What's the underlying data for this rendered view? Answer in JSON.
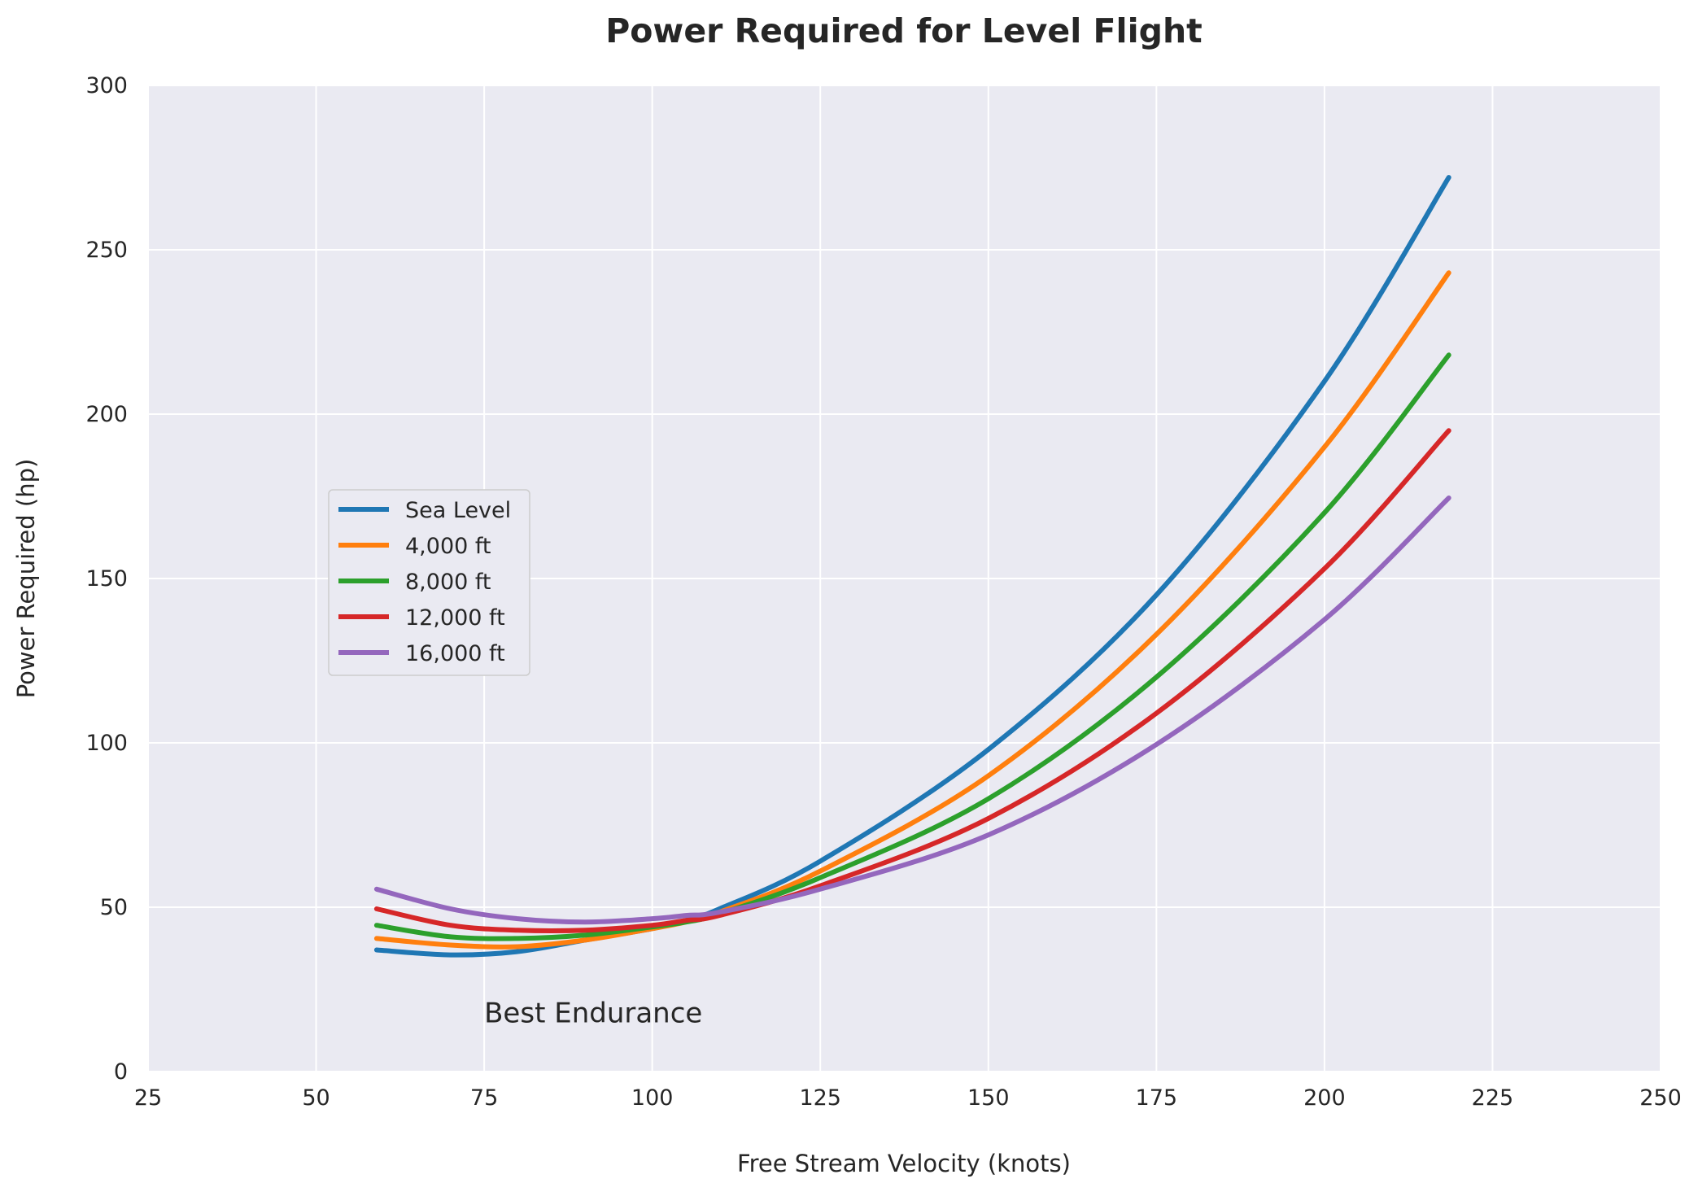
{
  "chart_data": {
    "type": "line",
    "title": "Power Required for Level Flight",
    "xlabel": "Free Stream Velocity (knots)",
    "ylabel": "Power Required (hp)",
    "xlim": [
      25,
      250
    ],
    "ylim": [
      0,
      300
    ],
    "xticks": [
      25,
      50,
      75,
      100,
      125,
      150,
      175,
      200,
      225,
      250
    ],
    "yticks": [
      0,
      50,
      100,
      150,
      200,
      250,
      300
    ],
    "grid": true,
    "background": "#eaeaf2",
    "legend_position": "center-left",
    "annotation": {
      "text": "Best Endurance",
      "x": 75,
      "y": 15
    },
    "x": [
      59,
      70,
      80,
      90,
      100,
      105,
      110,
      125,
      150,
      175,
      200,
      218.5
    ],
    "series": [
      {
        "name": "Sea Level",
        "color": "#1f77b4",
        "values": [
          37,
          35.5,
          36.5,
          40,
          43.5,
          46,
          49.5,
          64,
          98,
          145,
          210,
          272
        ]
      },
      {
        "name": "4,000 ft",
        "color": "#ff7f0e",
        "values": [
          40.5,
          38.5,
          38,
          40,
          43.5,
          45.5,
          48.5,
          61,
          90,
          133,
          190,
          243
        ]
      },
      {
        "name": "8,000 ft",
        "color": "#2ca02c",
        "values": [
          44.5,
          41,
          40.5,
          41.5,
          44,
          45.5,
          48,
          59,
          83,
          120,
          170,
          218
        ]
      },
      {
        "name": "12,000 ft",
        "color": "#d62728",
        "values": [
          49.5,
          44.5,
          43,
          43,
          44.5,
          46,
          47.5,
          56.5,
          77,
          109,
          153,
          195
        ]
      },
      {
        "name": "16,000 ft",
        "color": "#9467bd",
        "values": [
          55.5,
          49.5,
          46.5,
          45.5,
          46.5,
          47.5,
          48.5,
          55.5,
          72,
          99.5,
          137.5,
          174.5
        ]
      }
    ]
  }
}
